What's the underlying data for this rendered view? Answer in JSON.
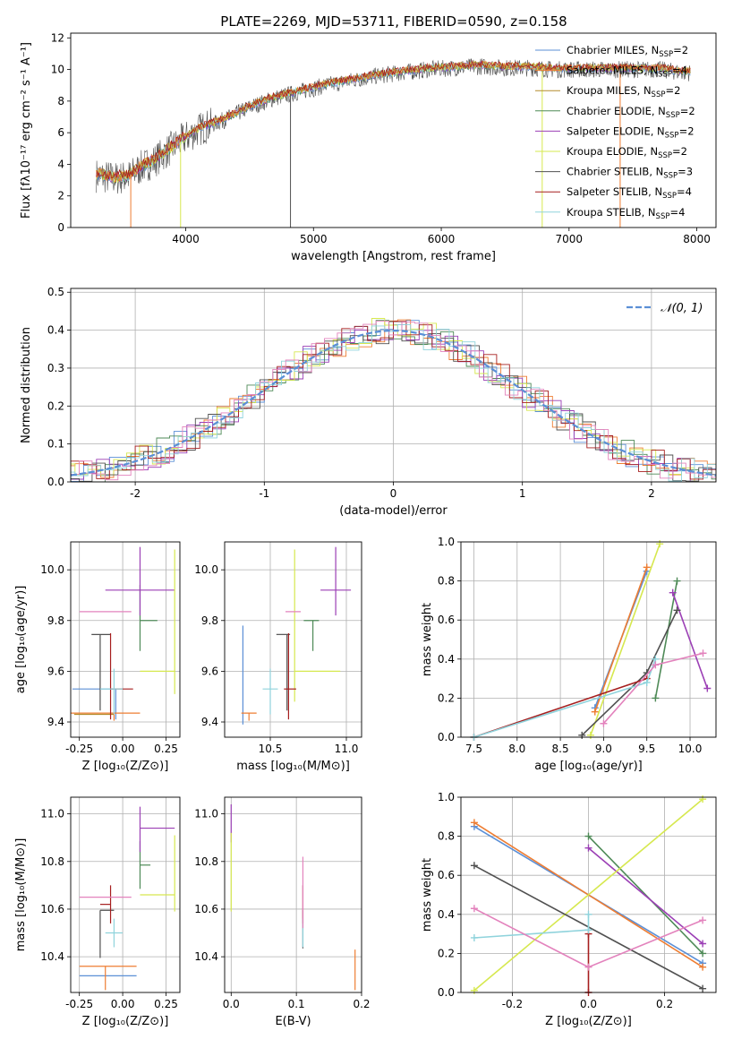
{
  "page": {
    "title": "PLATE=2269, MJD=53711, FIBERID=0590, z=0.158"
  },
  "colors": {
    "c0": "#5b8fd6",
    "c1": "#ee7d32",
    "c2": "#b38c2b",
    "c3": "#4e8a57",
    "c4": "#9b3fb5",
    "c5": "#d6e84f",
    "c6": "#505050",
    "c7": "#a61e1e",
    "c8": "#8fd3dc",
    "pink": "#e383bd",
    "grid": "#b0b0b0"
  },
  "chart_data": [
    {
      "id": "spectrum",
      "type": "line",
      "xlabel": "wavelength [Angstrom, rest frame]",
      "ylabel": "Flux [fλ10⁻¹⁷ erg cm⁻² s⁻¹ A⁻¹]",
      "xlim": [
        3100,
        8150
      ],
      "ylim": [
        0,
        12.3
      ],
      "xticks": [
        4000,
        5000,
        6000,
        7000,
        8000
      ],
      "yticks": [
        0,
        2,
        4,
        6,
        8,
        10,
        12
      ],
      "grid": false,
      "legend": "top-right",
      "continuum": {
        "x": [
          3300,
          3450,
          3550,
          3650,
          3750,
          3850,
          3950,
          4100,
          4300,
          4500,
          4700,
          4900,
          5100,
          5300,
          5500,
          5700,
          5900,
          6100,
          6300,
          6500,
          6700,
          6900,
          7100,
          7300,
          7500,
          7700,
          7900
        ],
        "y": [
          3.3,
          3.1,
          3.2,
          3.8,
          4.2,
          4.8,
          5.4,
          6.2,
          6.8,
          7.6,
          8.2,
          8.6,
          9.0,
          9.3,
          9.6,
          9.8,
          10.0,
          10.1,
          10.2,
          10.1,
          10.1,
          10.0,
          10.0,
          10.0,
          10.0,
          10.0,
          9.8
        ]
      },
      "series": [
        {
          "name": "Chabrier MILES, N",
          "sub": "SSP",
          "suffix": "=2"
        },
        {
          "name": "Salpeter MILES, N",
          "sub": "SSP",
          "suffix": "=4"
        },
        {
          "name": "Kroupa MILES, N",
          "sub": "SSP",
          "suffix": "=2"
        },
        {
          "name": "Chabrier ELODIE, N",
          "sub": "SSP",
          "suffix": "=2"
        },
        {
          "name": "Salpeter ELODIE, N",
          "sub": "SSP",
          "suffix": "=2"
        },
        {
          "name": "Kroupa ELODIE, N",
          "sub": "SSP",
          "suffix": "=2"
        },
        {
          "name": "Chabrier STELIB, N",
          "sub": "SSP",
          "suffix": "=3"
        },
        {
          "name": "Salpeter STELIB, N",
          "sub": "SSP",
          "suffix": "=4"
        },
        {
          "name": "Kroupa STELIB, N",
          "sub": "SSP",
          "suffix": "=4"
        }
      ]
    },
    {
      "id": "residuals",
      "type": "line",
      "xlabel": "(data-model)/error",
      "ylabel": "Normed distribution",
      "xlim": [
        -2.5,
        2.5
      ],
      "ylim": [
        0,
        0.51
      ],
      "xticks": [
        -2,
        -1,
        0,
        1,
        2
      ],
      "yticks": [
        0.0,
        0.1,
        0.2,
        0.3,
        0.4,
        0.5
      ],
      "grid": true,
      "legend": "top-right",
      "legend_label": "𝒩(0, 1)",
      "reference": {
        "mu": 0,
        "sigma": 1
      }
    },
    {
      "id": "age_vs_Z",
      "type": "scatter",
      "xlabel": "Z [log₁₀(Z/Z⊙)]",
      "ylabel": "age  [log₁₀(age/yr)]",
      "xlim": [
        -0.3,
        0.33
      ],
      "ylim": [
        9.34,
        10.11
      ],
      "xticks": [
        -0.25,
        0.0,
        0.25
      ],
      "yticks": [
        9.4,
        9.6,
        9.8,
        10.0
      ],
      "grid": true,
      "points": [
        {
          "c": "c0",
          "x": -0.04,
          "y": 9.53,
          "xe": [
            0.25,
            0.0
          ],
          "ye": [
            0.12,
            0.0
          ]
        },
        {
          "c": "c1",
          "x": -0.05,
          "y": 9.435,
          "xe": [
            0.25,
            0.15
          ],
          "ye": [
            0.03,
            0.0
          ]
        },
        {
          "c": "c2",
          "x": -0.1,
          "y": 9.43,
          "xe": [
            0.18,
            0.05
          ],
          "ye": [
            0.0,
            0.0
          ]
        },
        {
          "c": "c3",
          "x": 0.1,
          "y": 9.8,
          "xe": [
            0.0,
            0.1
          ],
          "ye": [
            0.12,
            0.14
          ]
        },
        {
          "c": "c4",
          "x": 0.1,
          "y": 9.92,
          "xe": [
            0.2,
            0.2
          ],
          "ye": [
            0.1,
            0.17
          ]
        },
        {
          "c": "c5",
          "x": 0.3,
          "y": 9.6,
          "xe": [
            0.2,
            0.0
          ],
          "ye": [
            0.09,
            0.48
          ]
        },
        {
          "c": "c6",
          "x": -0.13,
          "y": 9.745,
          "xe": [
            0.05,
            0.06
          ],
          "ye": [
            0.3,
            0.0
          ]
        },
        {
          "c": "c7",
          "x": -0.07,
          "y": 9.53,
          "xe": [
            0.0,
            0.13
          ],
          "ye": [
            0.12,
            0.22
          ]
        },
        {
          "c": "c8",
          "x": -0.05,
          "y": 9.53,
          "xe": [
            0.08,
            0.05
          ],
          "ye": [
            0.1,
            0.08
          ]
        },
        {
          "c": "pink",
          "x": -0.1,
          "y": 9.835,
          "xe": [
            0.15,
            0.15
          ],
          "ye": [
            0.0,
            0.0
          ]
        }
      ]
    },
    {
      "id": "age_vs_mass",
      "type": "scatter",
      "xlabel": "mass [log₁₀(M/M⊙)]",
      "ylabel": "",
      "xlim": [
        10.2,
        11.1
      ],
      "ylim": [
        9.34,
        10.11
      ],
      "xticks": [
        10.5,
        11.0
      ],
      "yticks": [
        9.4,
        9.6,
        9.8,
        10.0
      ],
      "grid": true,
      "points": [
        {
          "c": "c0",
          "x": 10.32,
          "y": 9.53,
          "xe": [
            0.0,
            0.0
          ],
          "ye": [
            0.14,
            0.25
          ]
        },
        {
          "c": "c1",
          "x": 10.36,
          "y": 9.435,
          "xe": [
            0.05,
            0.05
          ],
          "ye": [
            0.03,
            0.0
          ]
        },
        {
          "c": "c3",
          "x": 10.78,
          "y": 9.8,
          "xe": [
            0.06,
            0.04
          ],
          "ye": [
            0.12,
            0.0
          ]
        },
        {
          "c": "c4",
          "x": 10.93,
          "y": 9.92,
          "xe": [
            0.1,
            0.1
          ],
          "ye": [
            0.1,
            0.17
          ]
        },
        {
          "c": "c5",
          "x": 10.66,
          "y": 9.6,
          "xe": [
            0.0,
            0.3
          ],
          "ye": [
            0.12,
            0.48
          ]
        },
        {
          "c": "c6",
          "x": 10.61,
          "y": 9.745,
          "xe": [
            0.07,
            0.02
          ],
          "ye": [
            0.3,
            0.0
          ]
        },
        {
          "c": "c7",
          "x": 10.62,
          "y": 9.53,
          "xe": [
            0.03,
            0.05
          ],
          "ye": [
            0.12,
            0.22
          ]
        },
        {
          "c": "c8",
          "x": 10.5,
          "y": 9.53,
          "xe": [
            0.05,
            0.05
          ],
          "ye": [
            0.1,
            0.08
          ]
        },
        {
          "c": "pink",
          "x": 10.65,
          "y": 9.835,
          "xe": [
            0.05,
            0.05
          ],
          "ye": [
            0.0,
            0.0
          ]
        }
      ]
    },
    {
      "id": "weight_vs_age",
      "type": "line",
      "xlabel": "age  [log₁₀(age/yr)]",
      "ylabel": "mass weight",
      "xlim": [
        7.35,
        10.3
      ],
      "ylim": [
        0,
        1.0
      ],
      "xticks": [
        7.5,
        8.0,
        8.5,
        9.0,
        9.5,
        10.0
      ],
      "yticks": [
        0.0,
        0.2,
        0.4,
        0.6,
        0.8,
        1.0
      ],
      "grid": true,
      "series": [
        {
          "c": "c0",
          "x": [
            8.9,
            9.5
          ],
          "y": [
            0.15,
            0.85
          ]
        },
        {
          "c": "c1",
          "x": [
            8.9,
            9.5
          ],
          "y": [
            0.13,
            0.87
          ]
        },
        {
          "c": "c3",
          "x": [
            9.6,
            9.85
          ],
          "y": [
            0.2,
            0.8
          ]
        },
        {
          "c": "c4",
          "x": [
            9.8,
            10.2
          ],
          "y": [
            0.74,
            0.25
          ]
        },
        {
          "c": "c5",
          "x": [
            8.85,
            9.65
          ],
          "y": [
            0.01,
            0.99
          ]
        },
        {
          "c": "c6",
          "x": [
            8.75,
            9.5,
            9.85
          ],
          "y": [
            0.01,
            0.33,
            0.65
          ]
        },
        {
          "c": "c7",
          "x": [
            7.5,
            9.5
          ],
          "y": [
            0.0,
            0.3
          ]
        },
        {
          "c": "c8",
          "x": [
            7.5,
            9.5,
            9.6
          ],
          "y": [
            0.0,
            0.28,
            0.4
          ]
        },
        {
          "c": "pink",
          "x": [
            9.0,
            9.6,
            10.15
          ],
          "y": [
            0.07,
            0.37,
            0.43
          ]
        }
      ]
    },
    {
      "id": "mass_vs_Z",
      "type": "scatter",
      "xlabel": "Z [log₁₀(Z/Z⊙)]",
      "ylabel": "mass [log₁₀(M/M⊙)]",
      "xlim": [
        -0.3,
        0.33
      ],
      "ylim": [
        10.25,
        11.07
      ],
      "xticks": [
        -0.25,
        0.0,
        0.25
      ],
      "yticks": [
        10.4,
        10.6,
        10.8,
        11.0
      ],
      "grid": true,
      "points": [
        {
          "c": "c0",
          "x": -0.1,
          "y": 10.32,
          "xe": [
            0.15,
            0.18
          ],
          "ye": [
            0.0,
            0.0
          ]
        },
        {
          "c": "c1",
          "x": -0.1,
          "y": 10.36,
          "xe": [
            0.15,
            0.18
          ],
          "ye": [
            0.1,
            0.0
          ]
        },
        {
          "c": "c3",
          "x": 0.1,
          "y": 10.785,
          "xe": [
            0.0,
            0.06
          ],
          "ye": [
            0.1,
            0.1
          ]
        },
        {
          "c": "c4",
          "x": 0.1,
          "y": 10.94,
          "xe": [
            0.0,
            0.2
          ],
          "ye": [
            0.1,
            0.09
          ]
        },
        {
          "c": "c5",
          "x": 0.3,
          "y": 10.66,
          "xe": [
            0.2,
            0.0
          ],
          "ye": [
            0.07,
            0.25
          ]
        },
        {
          "c": "c6",
          "x": -0.13,
          "y": 10.595,
          "xe": [
            0.0,
            0.08
          ],
          "ye": [
            0.2,
            0.0
          ]
        },
        {
          "c": "c7",
          "x": -0.07,
          "y": 10.62,
          "xe": [
            0.06,
            0.0
          ],
          "ye": [
            0.08,
            0.08
          ]
        },
        {
          "c": "c8",
          "x": -0.05,
          "y": 10.5,
          "xe": [
            0.05,
            0.05
          ],
          "ye": [
            0.06,
            0.06
          ]
        },
        {
          "c": "pink",
          "x": -0.1,
          "y": 10.65,
          "xe": [
            0.15,
            0.15
          ],
          "ye": [
            0.0,
            0.0
          ]
        }
      ]
    },
    {
      "id": "mass_vs_ebv",
      "type": "scatter",
      "xlabel": "E(B-V)",
      "ylabel": "",
      "xlim": [
        -0.01,
        0.2
      ],
      "ylim": [
        10.25,
        11.07
      ],
      "xticks": [
        0.0,
        0.1,
        0.2
      ],
      "yticks": [
        10.4,
        10.6,
        10.8,
        11.0
      ],
      "grid": true,
      "points": [
        {
          "c": "c1",
          "x": 0.19,
          "y": 10.36,
          "xe": [
            0.0,
            0.0
          ],
          "ye": [
            0.1,
            0.07
          ]
        },
        {
          "c": "c4",
          "x": 0.0,
          "y": 10.94,
          "xe": [
            0.0,
            0.0
          ],
          "ye": [
            0.06,
            0.1
          ]
        },
        {
          "c": "c5",
          "x": 0.0,
          "y": 10.76,
          "xe": [
            0.0,
            0.0
          ],
          "ye": [
            0.17,
            0.16
          ]
        },
        {
          "c": "c6",
          "x": 0.11,
          "y": 10.595,
          "xe": [
            0.0,
            0.0
          ],
          "ye": [
            0.16,
            0.0
          ]
        },
        {
          "c": "c7",
          "x": 0.11,
          "y": 10.62,
          "xe": [
            0.0,
            0.0
          ],
          "ye": [
            0.08,
            0.08
          ]
        },
        {
          "c": "c8",
          "x": 0.11,
          "y": 10.5,
          "xe": [
            0.0,
            0.0
          ],
          "ye": [
            0.06,
            0.06
          ]
        },
        {
          "c": "pink",
          "x": 0.11,
          "y": 10.65,
          "xe": [
            0.0,
            0.0
          ],
          "ye": [
            0.13,
            0.17
          ]
        }
      ]
    },
    {
      "id": "weight_vs_Z",
      "type": "line",
      "xlabel": "Z [log₁₀(Z/Z⊙)]",
      "ylabel": "mass weight",
      "xlim": [
        -0.335,
        0.335
      ],
      "ylim": [
        0,
        1.0
      ],
      "xticks": [
        -0.2,
        0.0,
        0.2
      ],
      "yticks": [
        0.0,
        0.2,
        0.4,
        0.6,
        0.8,
        1.0
      ],
      "grid": true,
      "series": [
        {
          "c": "c0",
          "x": [
            -0.3,
            0.3
          ],
          "y": [
            0.85,
            0.15
          ]
        },
        {
          "c": "c1",
          "x": [
            -0.3,
            0.3
          ],
          "y": [
            0.87,
            0.13
          ]
        },
        {
          "c": "c3",
          "x": [
            0.0,
            0.3
          ],
          "y": [
            0.8,
            0.2
          ]
        },
        {
          "c": "c4",
          "x": [
            0.0,
            0.3
          ],
          "y": [
            0.74,
            0.25
          ]
        },
        {
          "c": "c5",
          "x": [
            -0.3,
            0.3
          ],
          "y": [
            0.01,
            0.99
          ]
        },
        {
          "c": "c6",
          "x": [
            -0.3,
            0.3
          ],
          "y": [
            0.65,
            0.02
          ]
        },
        {
          "c": "c7",
          "x": [
            0.0,
            0.0
          ],
          "y": [
            0.3,
            0.0
          ]
        },
        {
          "c": "c8",
          "x": [
            -0.3,
            0.0,
            0.0
          ],
          "y": [
            0.28,
            0.32,
            0.4
          ]
        },
        {
          "c": "pink",
          "x": [
            -0.3,
            0.0,
            0.3
          ],
          "y": [
            0.43,
            0.13,
            0.37
          ]
        }
      ]
    }
  ]
}
